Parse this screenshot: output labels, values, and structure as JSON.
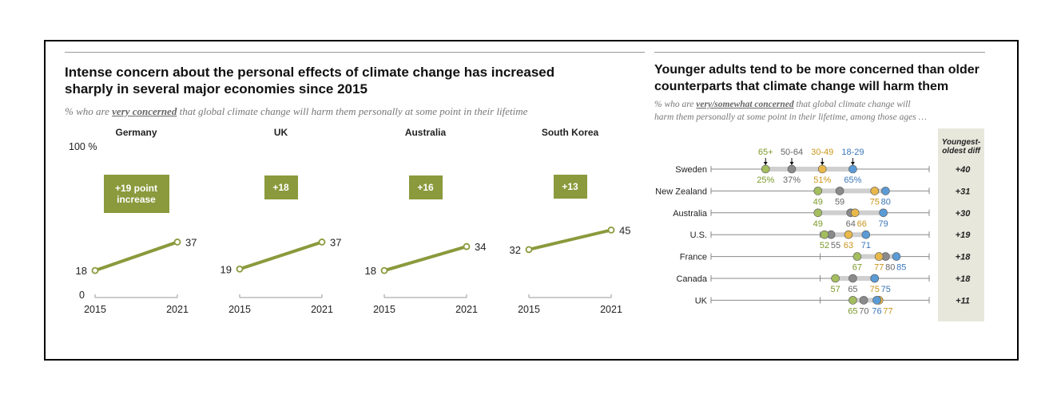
{
  "left": {
    "title_line1": "Intense concern about the personal effects of climate change has increased",
    "title_line2": "sharply in several major economies since 2015",
    "subtitle_pre": "% who are ",
    "subtitle_em": "very concerned",
    "subtitle_post": " that global climate change will harm them personally at some point in their lifetime",
    "y_top_label": "100 %",
    "y_zero_label": "0"
  },
  "right": {
    "title_line1": "Younger adults tend to be more concerned than older",
    "title_line2": "counterparts that climate change will harm them",
    "subtitle_pre": "% who are ",
    "subtitle_em": "very/somewhat concerned",
    "subtitle_post": " that global climate change will",
    "subtitle_line2": "harm them personally at some point in their lifetime, among those ages …",
    "diff_header_line1": "Youngest-",
    "diff_header_line2": "oldest diff"
  },
  "colors": {
    "olive": "#8a9a3c",
    "age_65plus": "#a3bd5f",
    "age_50_64": "#8a8a8a",
    "age_30_49": "#e8b84a",
    "age_18_29": "#5b9bd5",
    "label_65plus": "#7a9a2a",
    "label_50_64": "#666666",
    "label_30_49": "#c9951a",
    "label_18_29": "#3a76b8"
  },
  "chart_data": [
    {
      "type": "line",
      "panels": [
        {
          "name": "Germany",
          "x": [
            "2015",
            "2021"
          ],
          "values": [
            18,
            37
          ],
          "badge": "+19 point increase"
        },
        {
          "name": "UK",
          "x": [
            "2015",
            "2021"
          ],
          "values": [
            19,
            37
          ],
          "badge": "+18"
        },
        {
          "name": "Australia",
          "x": [
            "2015",
            "2021"
          ],
          "values": [
            18,
            34
          ],
          "badge": "+16"
        },
        {
          "name": "South Korea",
          "x": [
            "2015",
            "2021"
          ],
          "values": [
            32,
            45
          ],
          "badge": "+13"
        }
      ],
      "ylim": [
        0,
        100
      ]
    },
    {
      "type": "scatter",
      "series": [
        {
          "name": "65+"
        },
        {
          "name": "50-64"
        },
        {
          "name": "30-49"
        },
        {
          "name": "18-29"
        }
      ],
      "xlim": [
        0,
        100
      ],
      "rows": [
        {
          "country": "Sweden",
          "values": [
            25,
            37,
            51,
            65
          ],
          "labels": [
            "25%",
            "37%",
            "51%",
            "65%"
          ],
          "diff": "+40"
        },
        {
          "country": "New Zealand",
          "values": [
            49,
            59,
            75,
            80
          ],
          "labels": [
            "49",
            "59",
            "75",
            "80"
          ],
          "diff": "+31"
        },
        {
          "country": "Australia",
          "values": [
            49,
            64,
            66,
            79
          ],
          "labels": [
            "49",
            "64",
            "66",
            "79"
          ],
          "diff": "+30"
        },
        {
          "country": "U.S.",
          "values": [
            52,
            55,
            63,
            71
          ],
          "labels": [
            "52",
            "55",
            "63",
            "71"
          ],
          "diff": "+19"
        },
        {
          "country": "France",
          "values": [
            67,
            80,
            77,
            85
          ],
          "labels": [
            "67",
            "80",
            "77",
            "85"
          ],
          "diff": "+18"
        },
        {
          "country": "Canada",
          "values": [
            57,
            65,
            75,
            75
          ],
          "labels": [
            "57",
            "65",
            "75",
            "75"
          ],
          "diff": "+18"
        },
        {
          "country": "UK",
          "values": [
            65,
            70,
            77,
            76
          ],
          "labels": [
            "65",
            "70",
            "77",
            "76"
          ],
          "diff": "+11"
        }
      ]
    }
  ]
}
